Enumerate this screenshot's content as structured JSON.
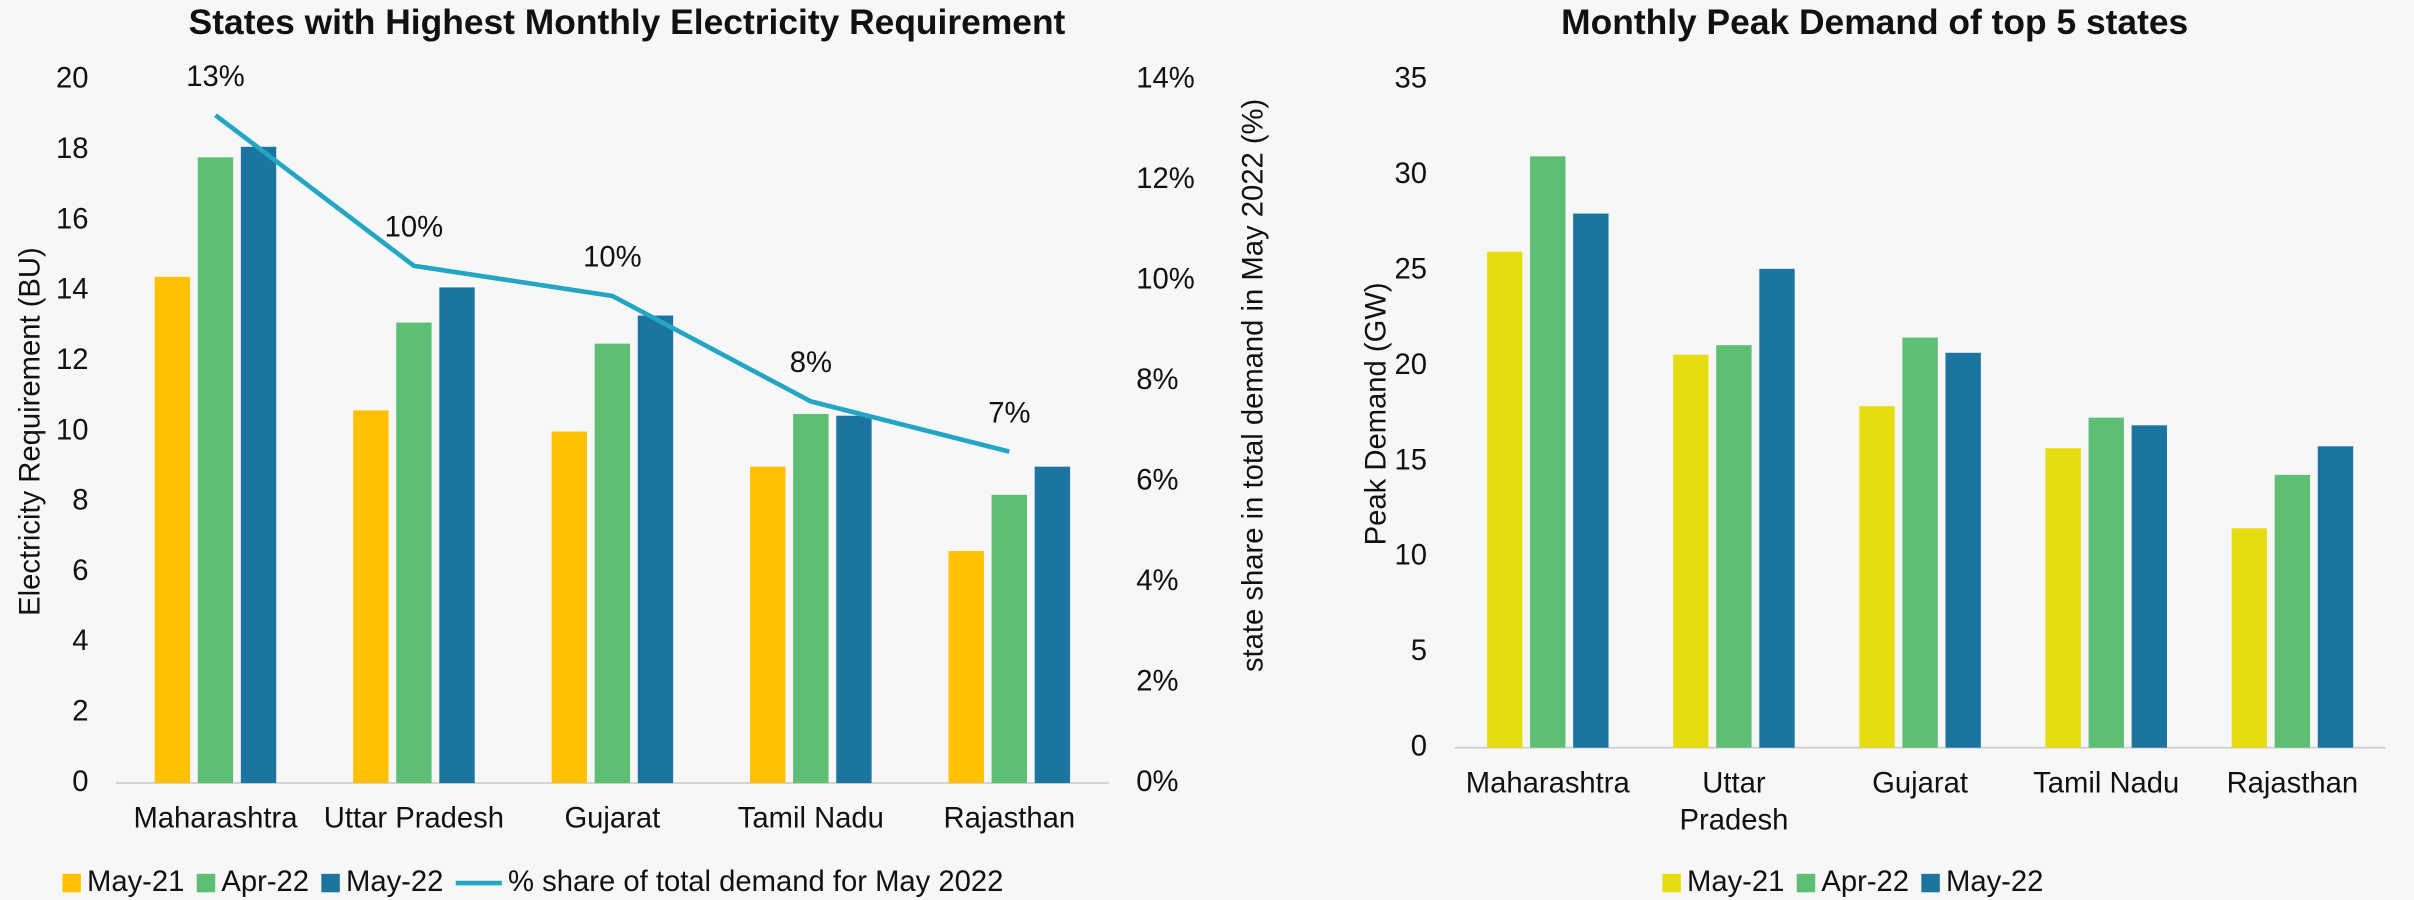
{
  "chart_data": [
    {
      "type": "bar",
      "title": "States with Highest Monthly Electricity Requirement",
      "y_label": "Electricity Requirement (BU)",
      "y2_label": "state share in total demand in May 2022 (%)",
      "categories": [
        "Maharashtra",
        "Uttar Pradesh",
        "Gujarat",
        "Tamil Nadu",
        "Rajasthan"
      ],
      "series": [
        {
          "name": "May-21",
          "color": "#ffc000",
          "values": [
            14.4,
            10.6,
            10.0,
            9.0,
            6.6
          ]
        },
        {
          "name": "Apr-22",
          "color": "#5dbf73",
          "values": [
            17.8,
            13.1,
            12.5,
            10.5,
            8.2
          ]
        },
        {
          "name": "May-22",
          "color": "#1b75a0",
          "values": [
            18.1,
            14.1,
            13.3,
            10.45,
            9.0
          ]
        },
        {
          "name": "% share of total demand for May 2022",
          "type": "line",
          "axis": "y2",
          "color": "#22a6c4",
          "values": [
            13.3,
            10.3,
            9.7,
            7.6,
            6.6
          ],
          "value_labels": [
            "13%",
            "10%",
            "10%",
            "8%",
            "7%"
          ]
        }
      ],
      "ylim": [
        0,
        20
      ],
      "yticks": [
        0,
        2,
        4,
        6,
        8,
        10,
        12,
        14,
        16,
        18,
        20
      ],
      "y2lim": [
        0,
        14
      ],
      "y2ticks": [
        {
          "value": 0,
          "label": "0%"
        },
        {
          "value": 2,
          "label": "2%"
        },
        {
          "value": 4,
          "label": "4%"
        },
        {
          "value": 6,
          "label": "6%"
        },
        {
          "value": 8,
          "label": "8%"
        },
        {
          "value": 10,
          "label": "10%"
        },
        {
          "value": 12,
          "label": "12%"
        },
        {
          "value": 14,
          "label": "14%"
        }
      ],
      "legend": "bottom"
    },
    {
      "type": "bar",
      "title": "Monthly Peak Demand of top 5 states",
      "y_label": "Peak Demand (GW)",
      "categories": [
        "Maharashtra",
        "Uttar Pradesh",
        "Gujarat",
        "Tamil Nadu",
        "Rajasthan"
      ],
      "series": [
        {
          "name": "May-21",
          "color": "#e6dd10",
          "values": [
            26.0,
            20.6,
            17.9,
            15.7,
            11.5
          ]
        },
        {
          "name": "Apr-22",
          "color": "#5dbf73",
          "values": [
            31.0,
            21.1,
            21.5,
            17.3,
            14.3
          ]
        },
        {
          "name": "May-22",
          "color": "#1b75a0",
          "values": [
            28.0,
            25.1,
            20.7,
            16.9,
            15.8
          ]
        }
      ],
      "ylim": [
        0,
        35
      ],
      "yticks": [
        0,
        5,
        10,
        15,
        20,
        25,
        30,
        35
      ],
      "legend": "bottom"
    }
  ]
}
